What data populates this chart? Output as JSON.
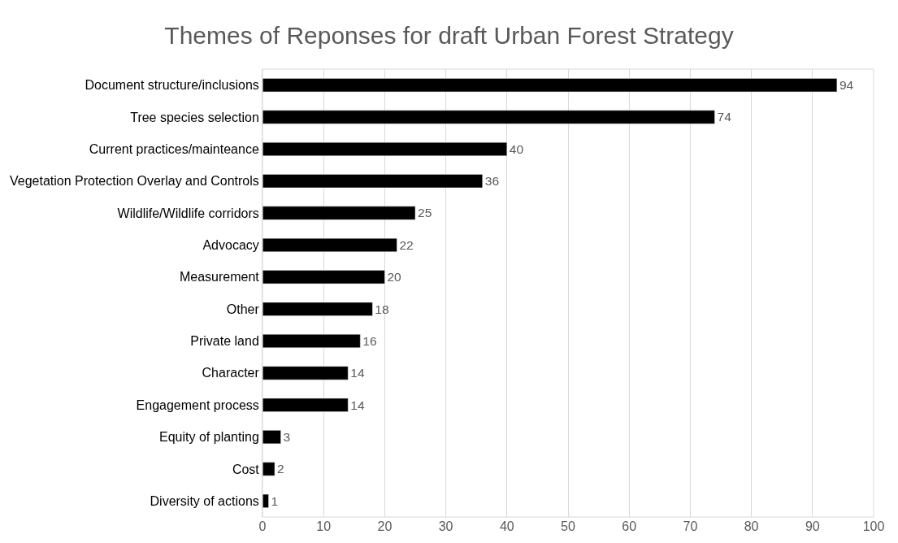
{
  "chart_data": {
    "type": "bar",
    "orientation": "horizontal",
    "title": "Themes of Reponses for draft Urban Forest Strategy",
    "categories": [
      "Document structure/inclusions",
      "Tree species selection",
      "Current practices/mainteance",
      "Vegetation Protection Overlay and Controls",
      "Wildlife/Wildlife corridors",
      "Advocacy",
      "Measurement",
      "Other",
      "Private land",
      "Character",
      "Engagement process",
      "Equity of planting",
      "Cost",
      "Diversity of actions"
    ],
    "values": [
      94,
      74,
      40,
      36,
      25,
      22,
      20,
      18,
      16,
      14,
      14,
      3,
      2,
      1
    ],
    "color": "#000000",
    "xlim": [
      0,
      100
    ],
    "xticks": [
      0,
      10,
      20,
      30,
      40,
      50,
      60,
      70,
      80,
      90,
      100
    ],
    "grid": "x",
    "data_labels": true,
    "legend": false
  }
}
